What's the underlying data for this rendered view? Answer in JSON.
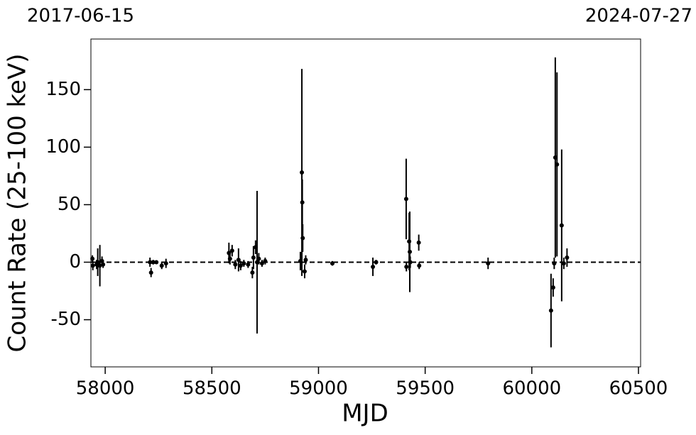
{
  "chart_data": {
    "type": "scatter",
    "annotations": [
      "2017-06-15",
      "2024-07-27"
    ],
    "xlabel": "MJD",
    "ylabel": "Count Rate (25-100 keV)",
    "xlim": [
      57933,
      60510
    ],
    "ylim": [
      -91,
      194
    ],
    "xticks": [
      58000,
      58500,
      59000,
      59500,
      60000,
      60500
    ],
    "yticks": [
      -50,
      0,
      50,
      100,
      150
    ],
    "reference_line": 0,
    "color": "#000000",
    "grid": false,
    "x": [
      57940,
      57942,
      57960,
      57965,
      57975,
      57985,
      57990,
      58210,
      58215,
      58225,
      58240,
      58265,
      58285,
      58580,
      58585,
      58595,
      58610,
      58625,
      58635,
      58650,
      58670,
      58690,
      58695,
      58705,
      58712,
      58720,
      58735,
      58750,
      58915,
      58922,
      58924,
      58926,
      58935,
      58940,
      59065,
      59255,
      59270,
      59411,
      59412,
      59425,
      59428,
      59430,
      59470,
      59472,
      59795,
      60090,
      60100,
      60105,
      60110,
      60118,
      60140,
      60150,
      60165
    ],
    "values": [
      3,
      -3,
      -2,
      0,
      -3,
      1,
      -2,
      0,
      -9,
      0,
      0,
      -3,
      -1,
      8,
      3,
      10,
      -2,
      2,
      -3,
      -1,
      -2,
      -9,
      4,
      13,
      0,
      3,
      -1,
      1,
      1,
      78,
      52,
      21,
      -8,
      2,
      -1,
      -4,
      0,
      55,
      -4,
      18,
      9,
      0,
      17,
      -3,
      -1,
      -42,
      -22,
      -1,
      91,
      85,
      32,
      -1,
      4
    ],
    "errors": [
      3,
      4,
      4,
      12,
      18,
      4,
      3,
      4,
      4,
      2,
      1,
      3,
      4,
      9,
      5,
      5,
      4,
      10,
      4,
      3,
      3,
      5,
      10,
      6,
      62,
      5,
      3,
      3,
      8,
      90,
      20,
      12,
      6,
      4,
      2,
      8,
      2,
      35,
      4,
      25,
      35,
      5,
      7,
      3,
      5,
      32,
      8,
      5,
      87,
      80,
      66,
      5,
      8
    ]
  }
}
